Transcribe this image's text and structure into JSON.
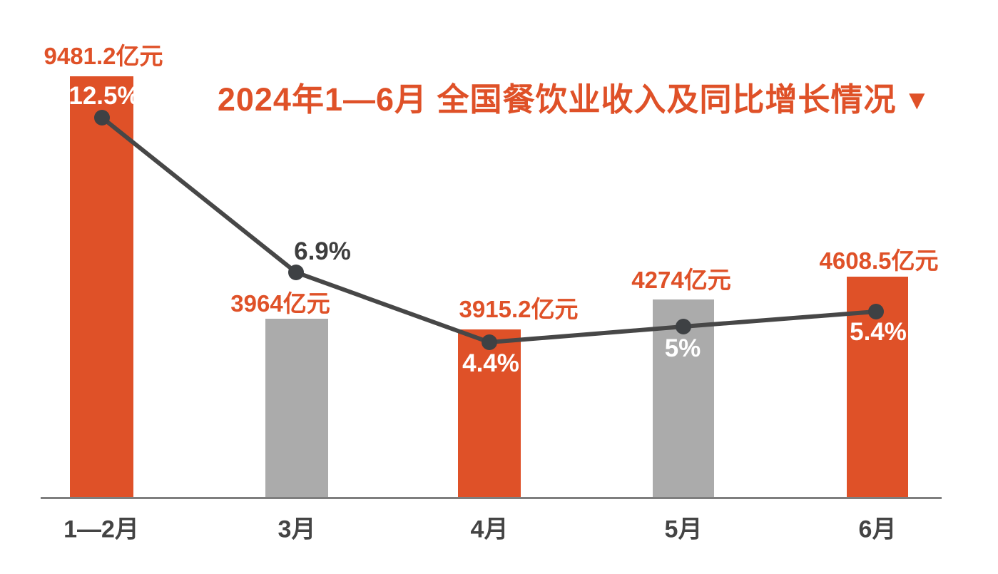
{
  "colors": {
    "accent_orange": "#DF5128",
    "bar_gray": "#ABABAB",
    "line_dark": "#474747",
    "dot_dark": "#3E4144",
    "axis_gray": "#7E7E7E",
    "text_dark": "#3E3E3E",
    "background": "#FFFFFF"
  },
  "chart": {
    "title": "2024年1—6月 全国餐饮业收入及同比增长情况",
    "title_marker": "▼"
  },
  "chart_data": {
    "type": "bar",
    "subtype": "bar-line-combo",
    "title": "2024年1—6月 全国餐饮业收入及同比增长情况",
    "categories": [
      "1—2月",
      "3月",
      "4月",
      "5月",
      "6月"
    ],
    "series": [
      {
        "name": "餐饮业收入",
        "type": "bar",
        "unit": "亿元",
        "values": [
          9481.2,
          3964,
          3915.2,
          4274,
          4608.5
        ],
        "labels": [
          "9481.2亿元",
          "3964亿元",
          "3915.2亿元",
          "4274亿元",
          "4608.5亿元"
        ]
      },
      {
        "name": "同比增长",
        "type": "line",
        "unit": "%",
        "values": [
          12.5,
          6.9,
          4.4,
          5,
          5.4
        ],
        "labels": [
          "12.5%",
          "6.9%",
          "4.4%",
          "5%",
          "5.4%"
        ]
      }
    ],
    "bar_colors": [
      "#DF5128",
      "#ABABAB",
      "#DF5128",
      "#ABABAB",
      "#DF5128"
    ],
    "legend_position": "none",
    "grid": false,
    "x_axis_line": true,
    "y_axis_visible": false
  }
}
